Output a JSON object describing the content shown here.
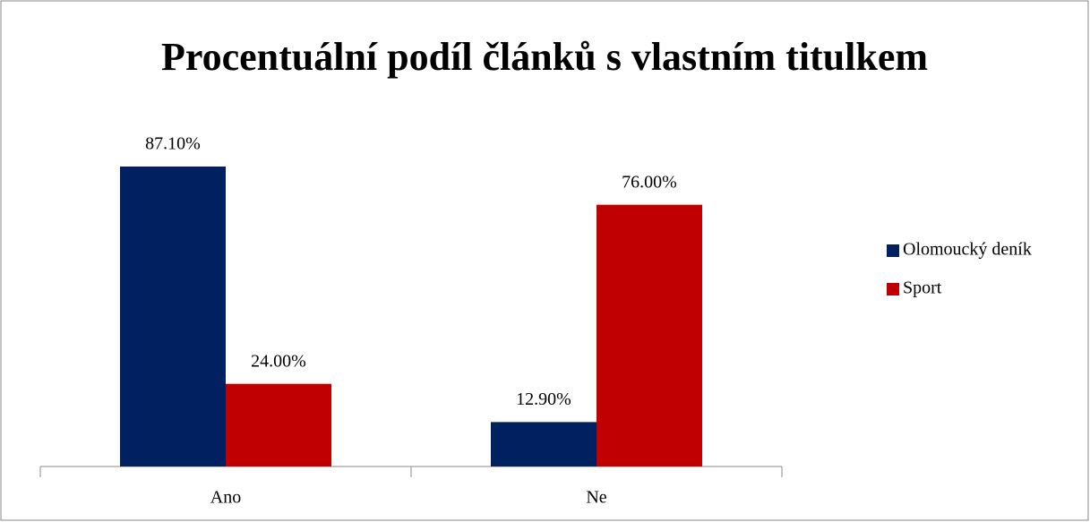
{
  "chart_data": {
    "type": "bar",
    "title": "Procentuální podíl článků s vlastním titulkem",
    "categories": [
      "Ano",
      "Ne"
    ],
    "series": [
      {
        "name": "Olomoucký deník",
        "color": "#002060",
        "values": [
          87.1,
          12.9
        ],
        "value_labels": [
          "87.10%",
          "12.90%"
        ]
      },
      {
        "name": "Sport",
        "color": "#c00000",
        "values": [
          24,
          76
        ],
        "value_labels": [
          "24.00%",
          "76.00%"
        ]
      }
    ],
    "legend": "right"
  }
}
